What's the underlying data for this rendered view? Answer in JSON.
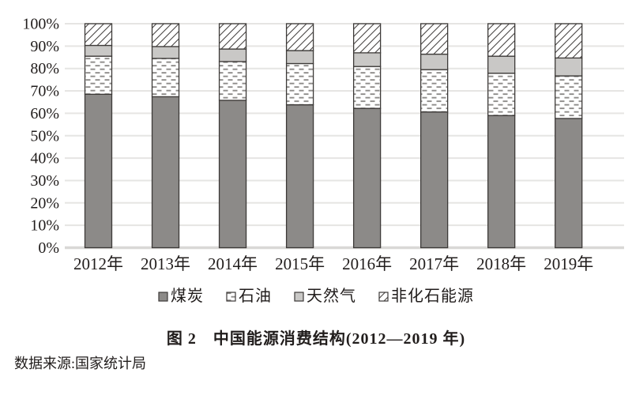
{
  "chart_data": {
    "type": "bar",
    "variant": "stacked-percent-vertical",
    "title": "图 2　中国能源消费结构(2012—2019 年)",
    "source": "数据来源:国家统计局",
    "categories": [
      "2012年",
      "2013年",
      "2014年",
      "2015年",
      "2016年",
      "2017年",
      "2018年",
      "2019年"
    ],
    "series": [
      {
        "name": "煤炭",
        "style": "coal",
        "values": [
          68.5,
          67.4,
          65.8,
          63.8,
          62.2,
          60.6,
          59.0,
          57.7
        ]
      },
      {
        "name": "石油",
        "style": "oil",
        "values": [
          17.0,
          17.1,
          17.3,
          18.4,
          18.7,
          18.9,
          18.9,
          19.0
        ]
      },
      {
        "name": "天然气",
        "style": "gas",
        "values": [
          4.8,
          5.3,
          5.6,
          5.8,
          6.1,
          6.9,
          7.6,
          8.0
        ]
      },
      {
        "name": "非化石能源",
        "style": "nonfossil",
        "values": [
          9.7,
          10.2,
          11.3,
          12.0,
          13.0,
          13.6,
          14.5,
          15.3
        ]
      }
    ],
    "y_ticks": [
      "0%",
      "10%",
      "20%",
      "30%",
      "40%",
      "50%",
      "60%",
      "70%",
      "80%",
      "90%",
      "100%"
    ],
    "ylim": [
      0,
      100
    ],
    "grid": true,
    "legend_position": "bottom",
    "colors": {
      "coal": "#8c8a88",
      "gas": "#c9c8c6",
      "oil_dash": "#8e8c8a",
      "hatch_stroke": "#4a4745",
      "segment_border": "#3d3a38",
      "gridline": "#e6e5e3",
      "baseline": "#d9d8d6",
      "text": "#211d1c"
    }
  }
}
